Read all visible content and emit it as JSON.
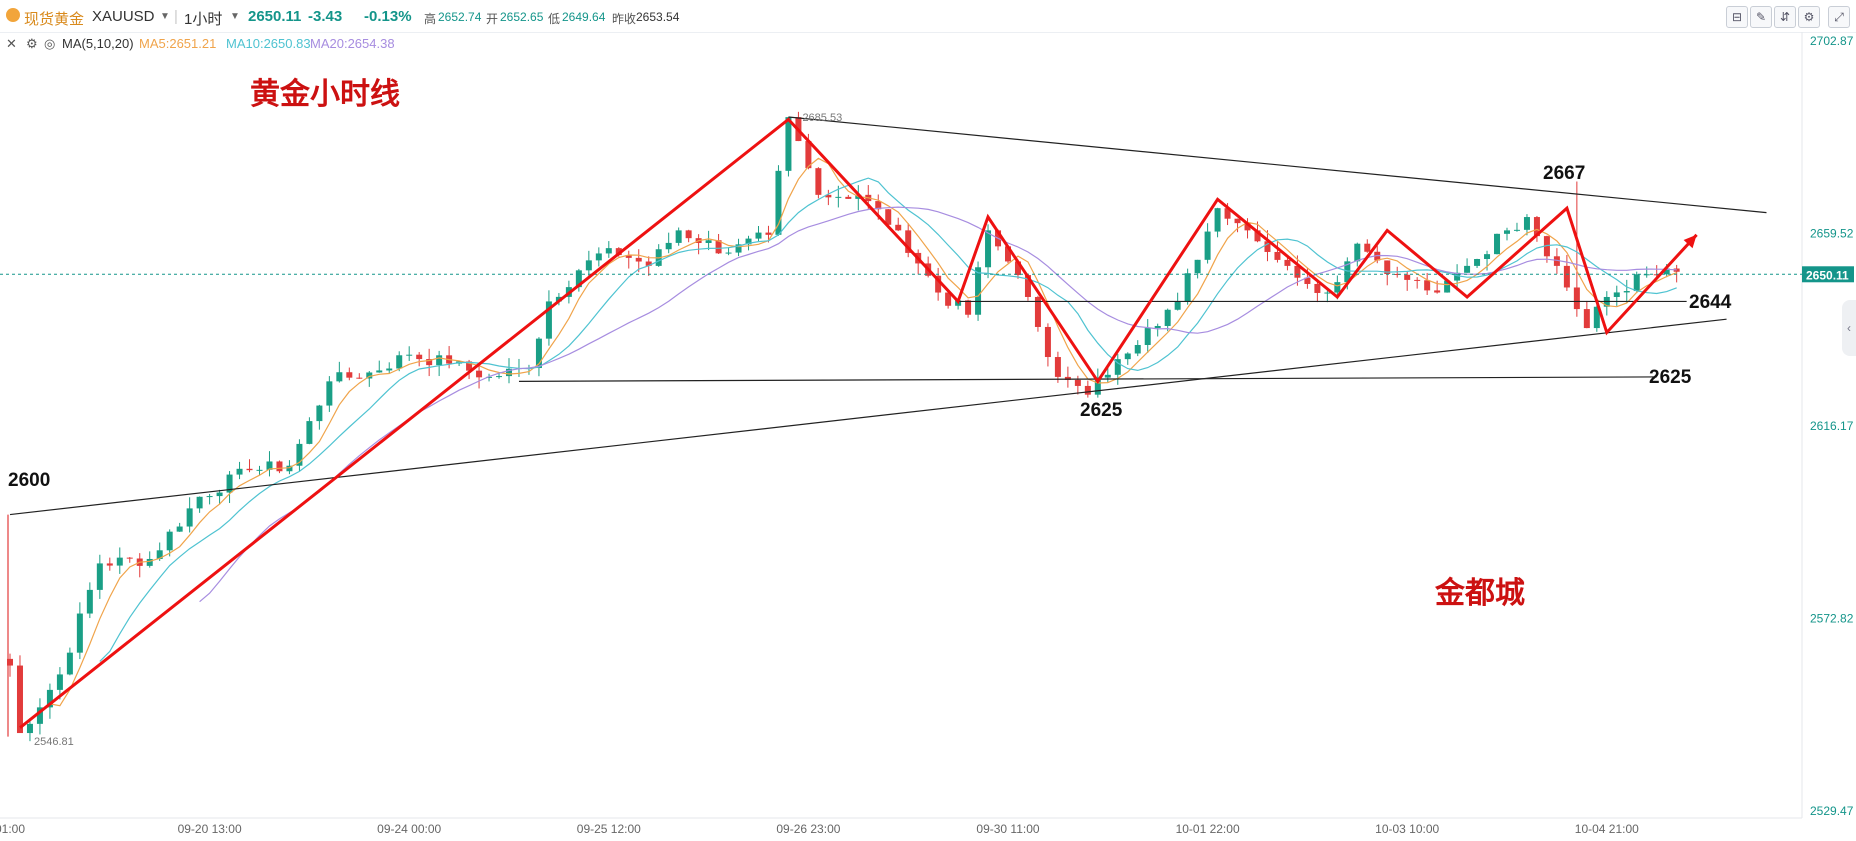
{
  "header": {
    "symbol_name": "现货黄金",
    "symbol_code": "XAUUSD",
    "interval": "1小时",
    "last_price": "2650.11",
    "change": "-3.43",
    "change_pct": "-0.13%",
    "high_label": "高",
    "high": "2652.74",
    "open_label": "开",
    "open": "2652.65",
    "low_label": "低",
    "low": "2649.64",
    "prev_label": "昨收",
    "prev": "2653.54",
    "tools": [
      "chart-type-icon",
      "draw-icon",
      "indicator-icon",
      "settings-icon",
      "expand-icon",
      "fullscreen-icon"
    ]
  },
  "ma_bar": {
    "label": "MA(5,10,20)",
    "ma5": "MA5:2651.21",
    "ma10": "MA10:2650.83",
    "ma20": "MA20:2654.38"
  },
  "colors": {
    "up": "#1a9f86",
    "down": "#e23b3b",
    "ma5": "#f0a44b",
    "ma10": "#4fc3d1",
    "ma20": "#a78de0",
    "annotation": "#ee1111",
    "trendline": "#222222",
    "price_tag": "#14958a"
  },
  "annotations": {
    "title": "黄金小时线",
    "watermark": "金都城",
    "labels": {
      "low_start": "2600",
      "peak": "2667",
      "support_top": "2644",
      "support_bottom": "2625",
      "valley": "2625"
    }
  },
  "chart_data": {
    "type": "candlestick",
    "symbol": "XAUUSD",
    "interval": "1小时",
    "y_ticks": [
      2702.87,
      2659.52,
      2616.17,
      2572.82,
      2529.47
    ],
    "ylim": [
      2529.47,
      2706.2
    ],
    "x_ticks": [
      "01:00",
      "09-20 13:00",
      "09-24 00:00",
      "09-25 12:00",
      "09-26 23:00",
      "09-30 11:00",
      "10-01 22:00",
      "10-03 10:00",
      "10-04 21:00"
    ],
    "x_tick_index": [
      0,
      20,
      40,
      60,
      80,
      100,
      120,
      140,
      160
    ],
    "bar_count": 168,
    "current_price": 2650.11,
    "max_label": "2685.53",
    "min_label": "2546.81",
    "extremes": {
      "max": 2685.53,
      "min": 2546.81
    },
    "path_anchors": [
      [
        0,
        2562
      ],
      [
        1,
        2546.8
      ],
      [
        5,
        2560
      ],
      [
        9,
        2585
      ],
      [
        14,
        2586
      ],
      [
        19,
        2600
      ],
      [
        24,
        2606
      ],
      [
        28,
        2607
      ],
      [
        32,
        2626
      ],
      [
        36,
        2628
      ],
      [
        40,
        2632
      ],
      [
        44,
        2630
      ],
      [
        48,
        2627
      ],
      [
        52,
        2629
      ],
      [
        54,
        2644
      ],
      [
        57,
        2651
      ],
      [
        60,
        2656
      ],
      [
        64,
        2652
      ],
      [
        67,
        2660
      ],
      [
        72,
        2655
      ],
      [
        76,
        2659
      ],
      [
        78,
        2685.5
      ],
      [
        81,
        2668
      ],
      [
        85,
        2668
      ],
      [
        89,
        2660
      ],
      [
        93,
        2646
      ],
      [
        96,
        2641
      ],
      [
        98,
        2660
      ],
      [
        100,
        2653
      ],
      [
        102,
        2645
      ],
      [
        105,
        2627
      ],
      [
        108,
        2623
      ],
      [
        111,
        2631
      ],
      [
        114,
        2638
      ],
      [
        117,
        2644
      ],
      [
        121,
        2665
      ],
      [
        124,
        2660
      ],
      [
        128,
        2652
      ],
      [
        132,
        2646
      ],
      [
        135,
        2657
      ],
      [
        139,
        2650
      ],
      [
        143,
        2646
      ],
      [
        146,
        2652
      ],
      [
        150,
        2660
      ],
      [
        152,
        2663
      ],
      [
        155,
        2652
      ],
      [
        158,
        2638
      ],
      [
        160,
        2645
      ],
      [
        164,
        2650.11
      ]
    ],
    "ma": [
      {
        "name": "MA5",
        "value": 2651.21
      },
      {
        "name": "MA10",
        "value": 2650.83
      },
      {
        "name": "MA20",
        "value": 2654.38
      }
    ],
    "trendlines": {
      "upper": [
        [
          78,
          2685.53
        ],
        [
          176,
          2664
        ]
      ],
      "lower": [
        [
          0,
          2596
        ],
        [
          172,
          2640
        ]
      ],
      "support_2644": [
        [
          95,
          2644
        ],
        [
          168,
          2644
        ]
      ],
      "support_2625": [
        [
          51,
          2626
        ],
        [
          165,
          2627
        ]
      ]
    },
    "zigzag": [
      [
        1,
        2548
      ],
      [
        78,
        2685
      ],
      [
        95,
        2644
      ],
      [
        98,
        2663
      ],
      [
        109,
        2626
      ],
      [
        121,
        2667
      ],
      [
        133,
        2645
      ],
      [
        138,
        2660
      ],
      [
        146,
        2645
      ],
      [
        156,
        2665
      ],
      [
        160,
        2637
      ],
      [
        169,
        2659
      ]
    ]
  }
}
